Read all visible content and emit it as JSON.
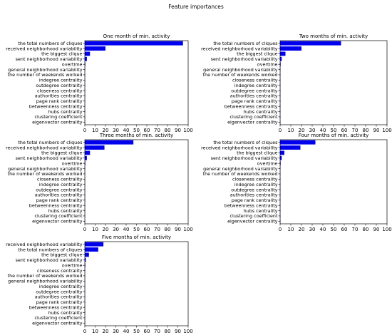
{
  "figure": {
    "suptitle": "Feature importances"
  },
  "colors": {
    "bar": "#0000ee",
    "axis": "#000000",
    "background": "#ffffff"
  },
  "chart_data": [
    {
      "type": "bar",
      "orientation": "horizontal",
      "title": "One month of min. activity",
      "categories": [
        "the total numbers of cliques",
        "received neighborhood variability",
        "the biggest clique",
        "sent neighborhood variability",
        "overtime",
        "general neighborhood variability",
        "the number of weekends worked",
        "indegree centrality",
        "outdegree centrality",
        "closeness centrality",
        "authorities centrality",
        "page rank centrality",
        "betweenness centrality",
        "hubs centrality",
        "clustering coefficient",
        "eigenvector centrality"
      ],
      "values": [
        95,
        20,
        5,
        2,
        0.5,
        0.3,
        0.2,
        0.1,
        0.1,
        0.1,
        0.1,
        0.1,
        0.1,
        0.1,
        0.1,
        0.1
      ],
      "xlim": [
        0,
        100
      ],
      "xticks": [
        0,
        10,
        20,
        30,
        40,
        50,
        60,
        70,
        80,
        90,
        100
      ]
    },
    {
      "type": "bar",
      "orientation": "horizontal",
      "title": "Two months of min. activity",
      "categories": [
        "the total numbers of cliques",
        "received neighborhood variability",
        "the biggest clique",
        "sent neighborhood variability",
        "overtime",
        "general neighborhood variability",
        "the number of weekends worked",
        "closeness centrality",
        "indegree centrality",
        "outdegree centrality",
        "authorities centrality",
        "page rank centrality",
        "betweenness centrality",
        "hubs centrality",
        "clustering coefficient",
        "eigenvector centrality"
      ],
      "values": [
        57,
        20,
        5,
        1.5,
        0.5,
        0.3,
        0.2,
        0.1,
        0.1,
        0.1,
        0.1,
        0.1,
        0.1,
        0.1,
        0.1,
        0.1
      ],
      "xlim": [
        0,
        100
      ],
      "xticks": [
        0,
        10,
        20,
        30,
        40,
        50,
        60,
        70,
        80,
        90,
        100
      ]
    },
    {
      "type": "bar",
      "orientation": "horizontal",
      "title": "Three months of min. activity",
      "categories": [
        "the total numbers of cliques",
        "received neighborhood variability",
        "the biggest clique",
        "sent neighborhood variability",
        "overtime",
        "general neighborhood variability",
        "the number of weekends worked",
        "closeness centrality",
        "indegree centrality",
        "outdegree centrality",
        "authorities centrality",
        "page rank centrality",
        "betweenness centrality",
        "hubs centrality",
        "clustering coefficient",
        "eigenvector centrality"
      ],
      "values": [
        47,
        19,
        5,
        2,
        0.5,
        0.3,
        0.2,
        0.1,
        0.1,
        0.1,
        0.1,
        0.1,
        0.1,
        0.1,
        0.1,
        0.1
      ],
      "xlim": [
        0,
        100
      ],
      "xticks": [
        0,
        10,
        20,
        30,
        40,
        50,
        60,
        70,
        80,
        90,
        100
      ]
    },
    {
      "type": "bar",
      "orientation": "horizontal",
      "title": "Four months of min. activity",
      "categories": [
        "the total numbers of cliques",
        "received neighborhood variability",
        "the biggest clique",
        "sent neighborhood variability",
        "overtime",
        "general neighborhood variability",
        "the number of weekends worked",
        "closeness centrality",
        "indegree centrality",
        "outdegree centrality",
        "authorities centrality",
        "page rank centrality",
        "betweenness centrality",
        "hubs centrality",
        "clustering coefficient",
        "eigenvector centrality"
      ],
      "values": [
        33,
        19,
        4,
        1.5,
        0.5,
        0.3,
        0.2,
        0.1,
        0.1,
        0.1,
        0.1,
        0.1,
        0.1,
        0.1,
        0.1,
        0.1
      ],
      "xlim": [
        0,
        100
      ],
      "xticks": [
        0,
        10,
        20,
        30,
        40,
        50,
        60,
        70,
        80,
        90,
        100
      ]
    },
    {
      "type": "bar",
      "orientation": "horizontal",
      "title": "Five months of min. activity",
      "categories": [
        "received neighborhood variability",
        "the total numbers of cliques",
        "the biggest clique",
        "sent neighborhood variability",
        "overtime",
        "closeness centrality",
        "the number of weekends worked",
        "general neighborhood variability",
        "indegree centrality",
        "outdegree centrality",
        "authorities centrality",
        "page rank centrality",
        "betweenness centrality",
        "hubs centrality",
        "clustering coefficient",
        "eigenvector centrality"
      ],
      "values": [
        18,
        13,
        4,
        1,
        0.5,
        0.3,
        0.2,
        0.2,
        0.1,
        0.1,
        0.1,
        0.1,
        0.1,
        0.1,
        0.1,
        0.1
      ],
      "xlim": [
        0,
        100
      ],
      "xticks": [
        0,
        10,
        20,
        30,
        40,
        50,
        60,
        70,
        80,
        90,
        100
      ]
    }
  ]
}
